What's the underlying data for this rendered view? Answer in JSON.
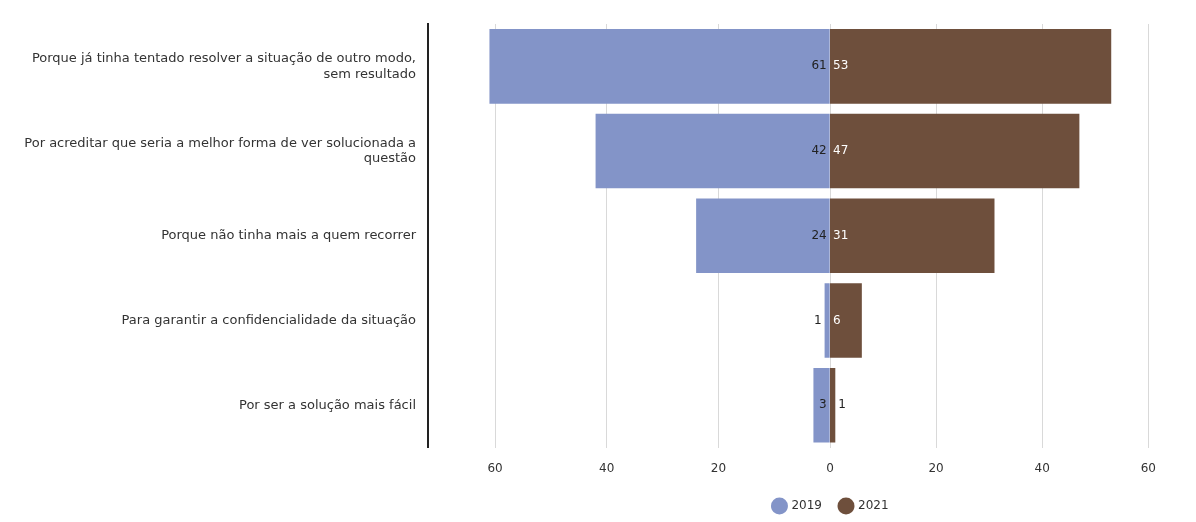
{
  "chart_data": [
    {
      "type": "bar",
      "orientation": "horizontal",
      "categories": [
        "Porque já tinha tentado resolver a situação de outro modo, sem resultado",
        "Por acreditar que seria a melhor forma de ver solucionada a questão",
        "Porque não tinha mais a quem recorrer",
        "Para garantir a confidencialidade da situação",
        "Por ser a solução mais fácil"
      ],
      "series": [
        {
          "name": "2019",
          "color": "#8394c8",
          "values": [
            61,
            42,
            24,
            1,
            3
          ]
        }
      ],
      "data_labels": true,
      "xlim": [
        72,
        0
      ],
      "xticks": [
        60,
        40,
        20,
        0
      ],
      "grid": "x",
      "legend": "bottom"
    },
    {
      "type": "bar",
      "orientation": "horizontal",
      "categories": [
        null,
        null,
        null,
        null,
        null
      ],
      "series": [
        {
          "name": "2021",
          "color": "#6e4f3c",
          "values": [
            53,
            47,
            31,
            6,
            1
          ]
        }
      ],
      "data_labels": true,
      "xlim": [
        0,
        60
      ],
      "xticks": [
        20,
        40,
        60
      ],
      "tick_labels": "x",
      "grid": "x",
      "legend": "bottom"
    }
  ]
}
